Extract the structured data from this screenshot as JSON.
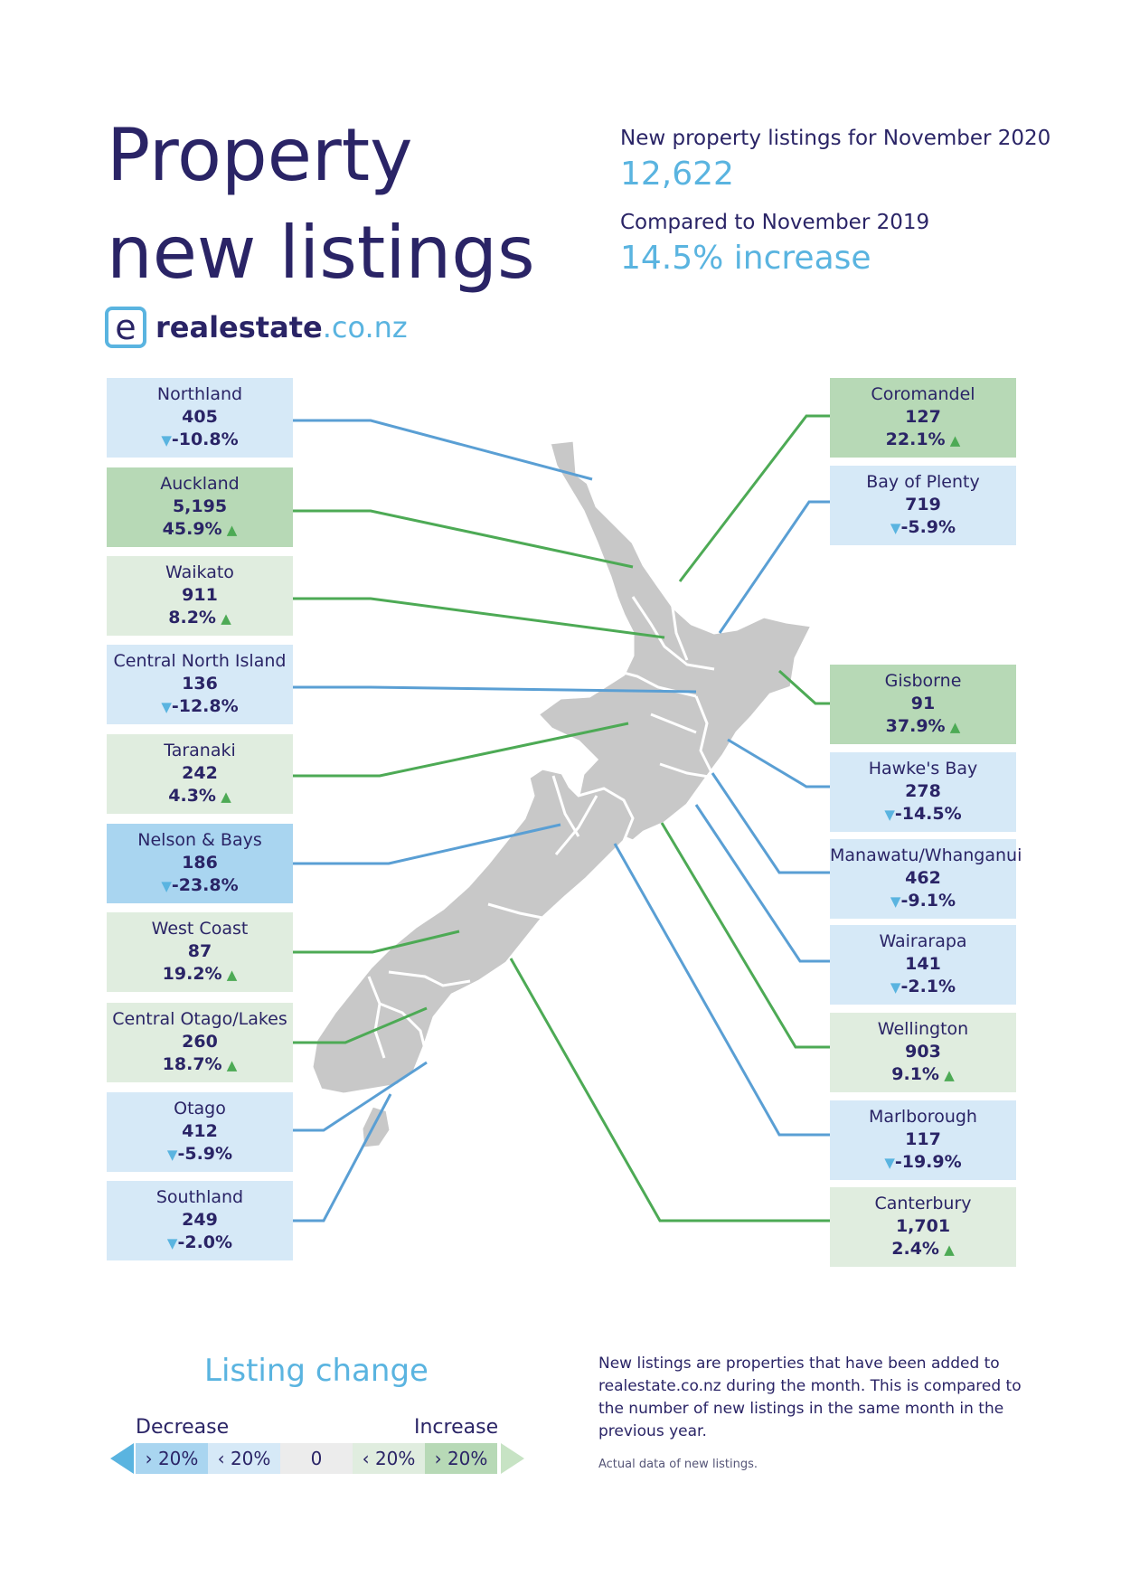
{
  "header": {
    "title_line1": "Property",
    "title_line2": "new listings",
    "listings_label": "New property listings for November 2020",
    "listings_value": "12,622",
    "compare_label": "Compared to November 2019",
    "compare_value": "14.5% increase"
  },
  "logo": {
    "mark": "e",
    "name": "realestate",
    "tld": ".co.nz"
  },
  "regions_left": [
    {
      "name": "Northland",
      "count": "405",
      "change": "-10.8%",
      "direction": "down",
      "shade": "dec"
    },
    {
      "name": "Auckland",
      "count": "5,195",
      "change": "45.9%",
      "direction": "up",
      "shade": "inc-strong"
    },
    {
      "name": "Waikato",
      "count": "911",
      "change": "8.2%",
      "direction": "up",
      "shade": "inc"
    },
    {
      "name": "Central North Island",
      "count": "136",
      "change": "-12.8%",
      "direction": "down",
      "shade": "dec"
    },
    {
      "name": "Taranaki",
      "count": "242",
      "change": "4.3%",
      "direction": "up",
      "shade": "inc"
    },
    {
      "name": "Nelson & Bays",
      "count": "186",
      "change": "-23.8%",
      "direction": "down",
      "shade": "dec-strong"
    },
    {
      "name": "West Coast",
      "count": "87",
      "change": "19.2%",
      "direction": "up",
      "shade": "inc"
    },
    {
      "name": "Central Otago/Lakes",
      "count": "260",
      "change": "18.7%",
      "direction": "up",
      "shade": "inc"
    },
    {
      "name": "Otago",
      "count": "412",
      "change": "-5.9%",
      "direction": "down",
      "shade": "dec"
    },
    {
      "name": "Southland",
      "count": "249",
      "change": "-2.0%",
      "direction": "down",
      "shade": "dec"
    }
  ],
  "regions_right": [
    {
      "name": "Coromandel",
      "count": "127",
      "change": "22.1%",
      "direction": "up",
      "shade": "inc-strong"
    },
    {
      "name": "Bay of Plenty",
      "count": "719",
      "change": "-5.9%",
      "direction": "down",
      "shade": "dec"
    },
    {
      "name": "Gisborne",
      "count": "91",
      "change": "37.9%",
      "direction": "up",
      "shade": "inc-strong"
    },
    {
      "name": "Hawke's Bay",
      "count": "278",
      "change": "-14.5%",
      "direction": "down",
      "shade": "dec"
    },
    {
      "name": "Manawatu/Whanganui",
      "count": "462",
      "change": "-9.1%",
      "direction": "down",
      "shade": "dec"
    },
    {
      "name": "Wairarapa",
      "count": "141",
      "change": "-2.1%",
      "direction": "down",
      "shade": "dec"
    },
    {
      "name": "Wellington",
      "count": "903",
      "change": "9.1%",
      "direction": "up",
      "shade": "inc"
    },
    {
      "name": "Marlborough",
      "count": "117",
      "change": "-19.9%",
      "direction": "down",
      "shade": "dec"
    },
    {
      "name": "Canterbury",
      "count": "1,701",
      "change": "2.4%",
      "direction": "up",
      "shade": "inc"
    }
  ],
  "legend": {
    "title": "Listing change",
    "decrease_label": "Decrease",
    "increase_label": "Increase",
    "steps": [
      "› 20%",
      "‹ 20%",
      "0",
      "‹ 20%",
      "› 20%"
    ],
    "colors": [
      "#a9d5f0",
      "#d6e9f7",
      "#ececec",
      "#e0eddf",
      "#b7d9b6"
    ]
  },
  "notes": {
    "description": "New listings are properties that have been added to realestate.co.nz during the month. This is compared to the number of new listings in the same month in the previous year.",
    "footnote": "Actual data of new listings."
  },
  "colors": {
    "increase": "#4daa55",
    "decrease": "#5ab4e0",
    "navy": "#2a2466"
  }
}
